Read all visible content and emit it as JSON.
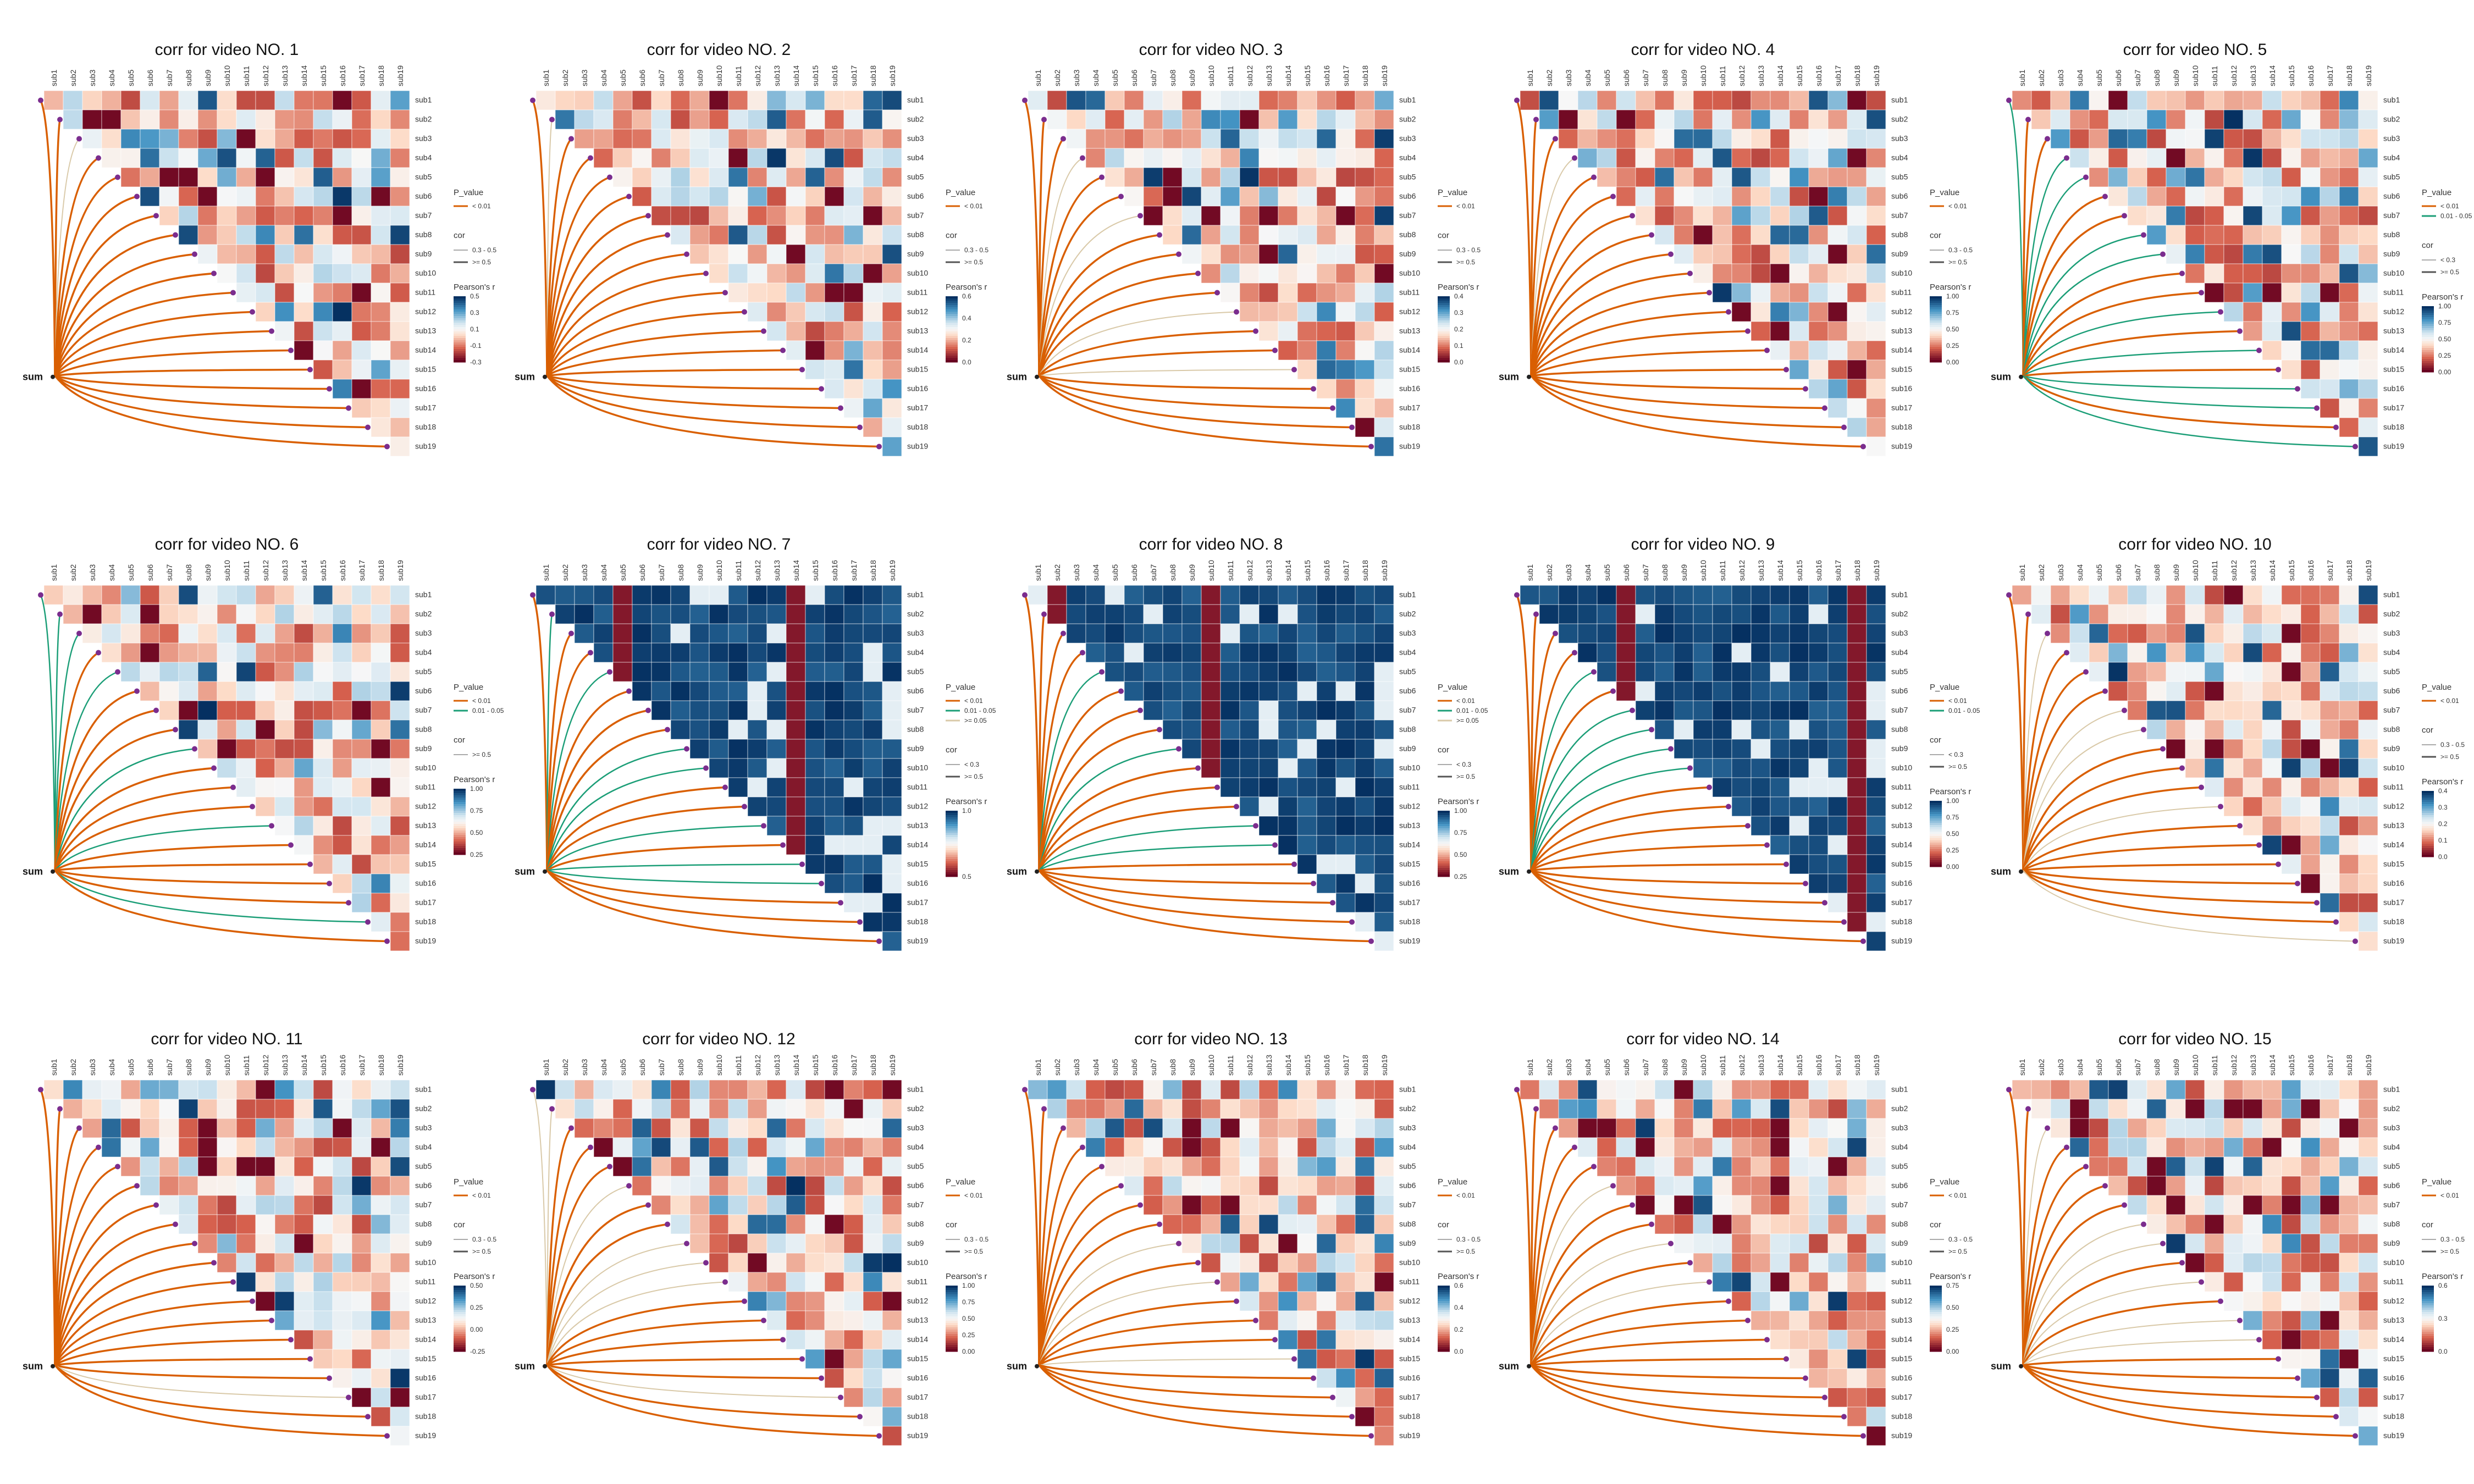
{
  "figure": {
    "subject_labels": [
      "sub1",
      "sub2",
      "sub3",
      "sub4",
      "sub5",
      "sub6",
      "sub7",
      "sub8",
      "sub9",
      "sub10",
      "sub11",
      "sub12",
      "sub13",
      "sub14",
      "sub15",
      "sub16",
      "sub17",
      "sub18",
      "sub19"
    ],
    "node_label": "sum",
    "colors": {
      "high_pos": "#053061",
      "mid_pos": "#4393c3",
      "light_pos": "#d1e5f0",
      "neutral": "#f7f7f7",
      "light_neg": "#fddbc7",
      "mid_neg": "#d6604d",
      "low": "#67001f",
      "edge_orange": "#d95f02",
      "edge_green": "#1b9e77",
      "edge_light": "#d9c9a8",
      "node_purple": "#7b2d8e"
    }
  },
  "chart_data": [
    {
      "type": "heatmap",
      "title": "corr for video NO. 1",
      "legend": {
        "p_title": "P_value",
        "p_items": [
          "< 0.01"
        ],
        "cor_title": "cor",
        "cor_items": [
          "0.3 - 0.5",
          ">= 0.5"
        ],
        "color_title": "Pearson's r",
        "color_ticks": [
          "0.5",
          "0.3",
          "0.1",
          "-0.1",
          "-0.3"
        ]
      }
    },
    {
      "type": "heatmap",
      "title": "corr for video NO. 2",
      "legend": {
        "p_title": "P_value",
        "p_items": [
          "< 0.01"
        ],
        "cor_title": "cor",
        "cor_items": [
          "0.3 - 0.5",
          ">= 0.5"
        ],
        "color_title": "Pearson's r",
        "color_ticks": [
          "0.6",
          "0.4",
          "0.2",
          "0.0"
        ]
      }
    },
    {
      "type": "heatmap",
      "title": "corr for video NO. 3",
      "legend": {
        "p_title": "P_value",
        "p_items": [
          "< 0.01"
        ],
        "cor_title": "cor",
        "cor_items": [
          "0.3 - 0.5",
          ">= 0.5"
        ],
        "color_title": "Pearson's r",
        "color_ticks": [
          "0.4",
          "0.3",
          "0.2",
          "0.1",
          "0.0"
        ]
      }
    },
    {
      "type": "heatmap",
      "title": "corr for video NO. 4",
      "legend": {
        "p_title": "P_value",
        "p_items": [
          "< 0.01"
        ],
        "cor_title": "cor",
        "cor_items": [
          "0.3 - 0.5",
          ">= 0.5"
        ],
        "color_title": "Pearson's r",
        "color_ticks": [
          "1.00",
          "0.75",
          "0.50",
          "0.25",
          "0.00"
        ]
      }
    },
    {
      "type": "heatmap",
      "title": "corr for video NO. 5",
      "legend": {
        "p_title": "P_value",
        "p_items": [
          "< 0.01",
          "0.01 - 0.05"
        ],
        "cor_title": "cor",
        "cor_items": [
          "< 0.3",
          ">= 0.5"
        ],
        "color_title": "Pearson's r",
        "color_ticks": [
          "1.00",
          "0.75",
          "0.50",
          "0.25",
          "0.00"
        ]
      }
    },
    {
      "type": "heatmap",
      "title": "corr for video NO. 6",
      "legend": {
        "p_title": "P_value",
        "p_items": [
          "< 0.01",
          "0.01 - 0.05"
        ],
        "cor_title": "cor",
        "cor_items": [
          ">= 0.5"
        ],
        "color_title": "Pearson's r",
        "color_ticks": [
          "1.00",
          "0.75",
          "0.50",
          "0.25"
        ]
      }
    },
    {
      "type": "heatmap",
      "title": "corr for video NO. 7",
      "legend": {
        "p_title": "P_value",
        "p_items": [
          "< 0.01",
          "0.01 - 0.05",
          ">= 0.05"
        ],
        "cor_title": "cor",
        "cor_items": [
          "< 0.3",
          ">= 0.5"
        ],
        "color_title": "Pearson's r",
        "color_ticks": [
          "1.0",
          "0.5"
        ]
      }
    },
    {
      "type": "heatmap",
      "title": "corr for video NO. 8",
      "legend": {
        "p_title": "P_value",
        "p_items": [
          "< 0.01",
          "0.01 - 0.05",
          ">= 0.05"
        ],
        "cor_title": "cor",
        "cor_items": [
          "< 0.3",
          ">= 0.5"
        ],
        "color_title": "Pearson's r",
        "color_ticks": [
          "1.00",
          "0.75",
          "0.50",
          "0.25"
        ]
      }
    },
    {
      "type": "heatmap",
      "title": "corr for video NO. 9",
      "legend": {
        "p_title": "P_value",
        "p_items": [
          "< 0.01",
          "0.01 - 0.05"
        ],
        "cor_title": "cor",
        "cor_items": [
          "< 0.3",
          ">= 0.5"
        ],
        "color_title": "Pearson's r",
        "color_ticks": [
          "1.00",
          "0.75",
          "0.50",
          "0.25",
          "0.00"
        ]
      }
    },
    {
      "type": "heatmap",
      "title": "corr for video NO. 10",
      "legend": {
        "p_title": "P_value",
        "p_items": [
          "< 0.01"
        ],
        "cor_title": "cor",
        "cor_items": [
          "0.3 - 0.5",
          ">= 0.5"
        ],
        "color_title": "Pearson's r",
        "color_ticks": [
          "0.4",
          "0.3",
          "0.2",
          "0.1",
          "0.0"
        ]
      }
    },
    {
      "type": "heatmap",
      "title": "corr for video NO. 11",
      "legend": {
        "p_title": "P_value",
        "p_items": [
          "< 0.01"
        ],
        "cor_title": "cor",
        "cor_items": [
          "0.3 - 0.5",
          ">= 0.5"
        ],
        "color_title": "Pearson's r",
        "color_ticks": [
          "0.50",
          "0.25",
          "0.00",
          "-0.25"
        ]
      }
    },
    {
      "type": "heatmap",
      "title": "corr for video NO. 12",
      "legend": {
        "p_title": "P_value",
        "p_items": [
          "< 0.01"
        ],
        "cor_title": "cor",
        "cor_items": [
          "0.3 - 0.5",
          ">= 0.5"
        ],
        "color_title": "Pearson's r",
        "color_ticks": [
          "1.00",
          "0.75",
          "0.50",
          "0.25",
          "0.00"
        ]
      }
    },
    {
      "type": "heatmap",
      "title": "corr for video NO. 13",
      "legend": {
        "p_title": "P_value",
        "p_items": [
          "< 0.01"
        ],
        "cor_title": "cor",
        "cor_items": [
          "0.3 - 0.5",
          ">= 0.5"
        ],
        "color_title": "Pearson's r",
        "color_ticks": [
          "0.6",
          "0.4",
          "0.2",
          "0.0"
        ]
      }
    },
    {
      "type": "heatmap",
      "title": "corr for video NO. 14",
      "legend": {
        "p_title": "P_value",
        "p_items": [
          "< 0.01"
        ],
        "cor_title": "cor",
        "cor_items": [
          "0.3 - 0.5",
          ">= 0.5"
        ],
        "color_title": "Pearson's r",
        "color_ticks": [
          "0.75",
          "0.50",
          "0.25",
          "0.00"
        ]
      }
    },
    {
      "type": "heatmap",
      "title": "corr for video NO. 15",
      "legend": {
        "p_title": "P_value",
        "p_items": [
          "< 0.01"
        ],
        "cor_title": "cor",
        "cor_items": [
          "0.3 - 0.5",
          ">= 0.5"
        ],
        "color_title": "Pearson's r",
        "color_ticks": [
          "0.6",
          "0.3",
          "0.0"
        ]
      }
    }
  ]
}
